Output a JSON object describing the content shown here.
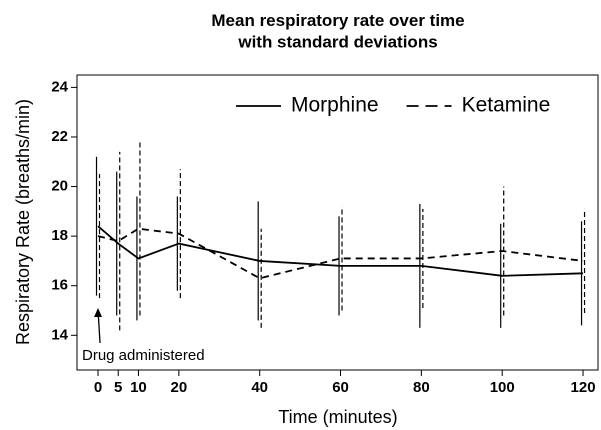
{
  "chart_data": {
    "type": "line",
    "title": "Mean respiratory rate over time\nwith standard deviations",
    "x_label": "Time (minutes)",
    "y_label": "Respiratory Rate (breaths/min)",
    "x": [
      0,
      5,
      10,
      20,
      40,
      60,
      80,
      100,
      120
    ],
    "series": [
      {
        "name": "Morphine",
        "color": "#000000",
        "style": "solid",
        "values": [
          18.4,
          17.7,
          17.1,
          17.7,
          17.0,
          16.8,
          16.8,
          16.4,
          16.5
        ],
        "errors": [
          2.8,
          2.9,
          2.5,
          1.9,
          2.4,
          2.0,
          2.5,
          2.1,
          2.1
        ]
      },
      {
        "name": "Ketamine",
        "color": "#000000",
        "style": "dashed",
        "values": [
          18.0,
          17.8,
          18.3,
          18.1,
          16.3,
          17.1,
          17.1,
          17.4,
          17.0
        ],
        "errors": [
          2.5,
          3.6,
          3.5,
          2.6,
          2.0,
          2.1,
          2.0,
          2.6,
          2.1
        ]
      }
    ],
    "xlim": [
      -5.2,
      123.7
    ],
    "ylim": [
      12.6,
      24.5
    ],
    "xticks": [
      0,
      5,
      10,
      20,
      40,
      60,
      80,
      100,
      120
    ],
    "yticks": [
      14,
      16,
      18,
      20,
      22,
      24
    ],
    "legend": "top-right",
    "annotation": "Drug administered"
  }
}
